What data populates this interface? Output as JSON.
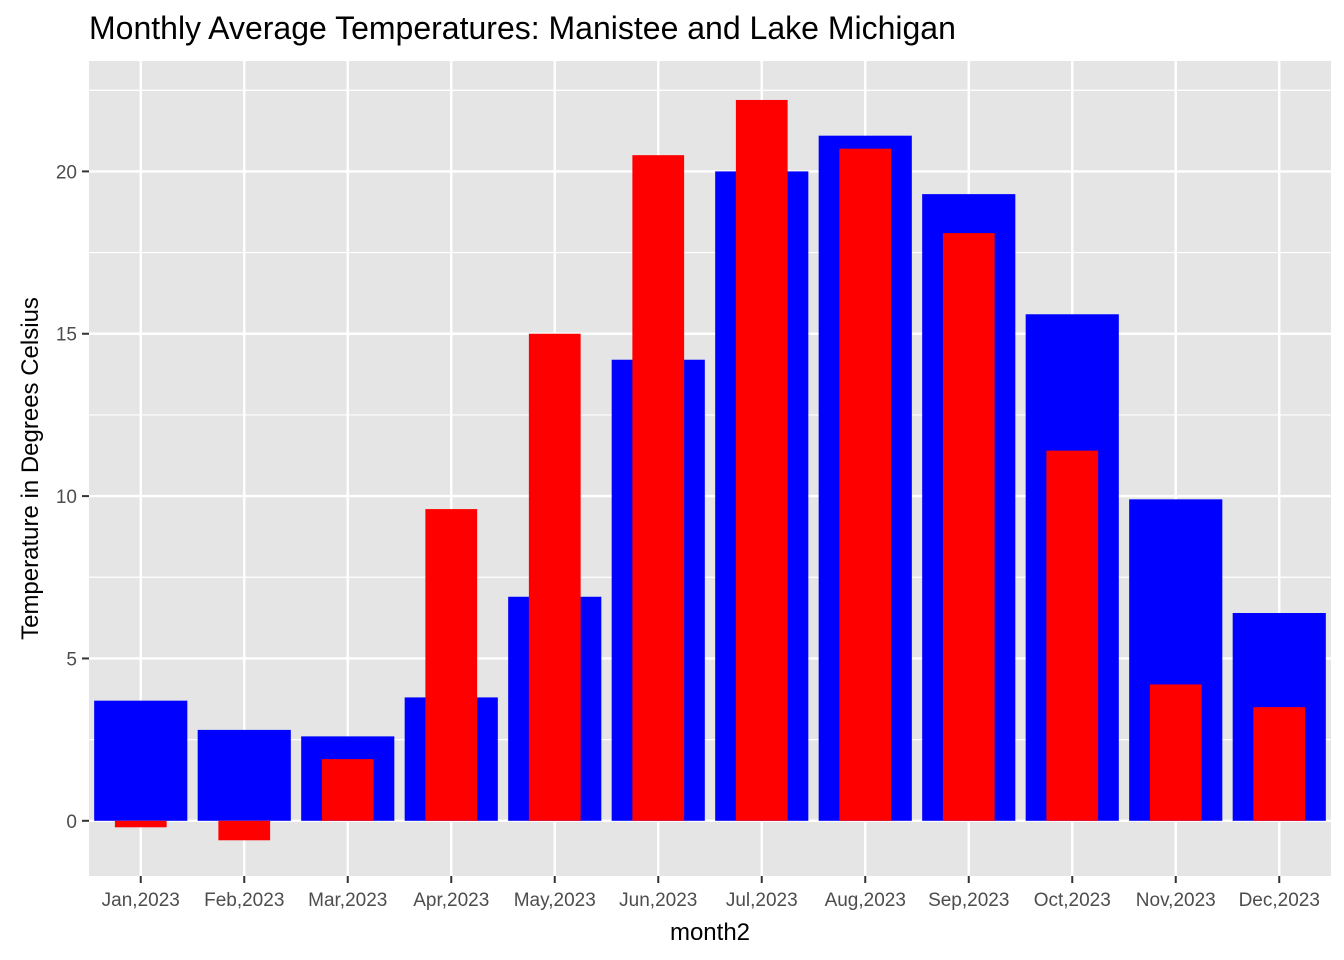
{
  "chart_data": {
    "type": "bar",
    "title": "Monthly Average Temperatures: Manistee and Lake Michigan",
    "xlabel": "month2",
    "ylabel": "Temperature in Degrees Celsius",
    "categories": [
      "Jan,2023",
      "Feb,2023",
      "Mar,2023",
      "Apr,2023",
      "May,2023",
      "Jun,2023",
      "Jul,2023",
      "Aug,2023",
      "Sep,2023",
      "Oct,2023",
      "Nov,2023",
      "Dec,2023"
    ],
    "series": [
      {
        "color": "#0000ff",
        "bar_width": "wide",
        "values": [
          3.7,
          2.8,
          2.6,
          3.8,
          6.9,
          14.2,
          20.0,
          21.1,
          19.3,
          15.6,
          9.9,
          6.4
        ]
      },
      {
        "color": "#ff0000",
        "bar_width": "narrow",
        "values": [
          -0.2,
          -0.6,
          1.9,
          9.6,
          15.0,
          20.5,
          22.2,
          20.7,
          18.1,
          11.4,
          4.2,
          3.5
        ]
      }
    ],
    "yticks": [
      0,
      5,
      10,
      15,
      20
    ],
    "ylim": [
      -1.7,
      23.4
    ],
    "grid": true,
    "panel_background": "#e5e5e5",
    "grid_color": "#ffffff",
    "legend": "none"
  }
}
